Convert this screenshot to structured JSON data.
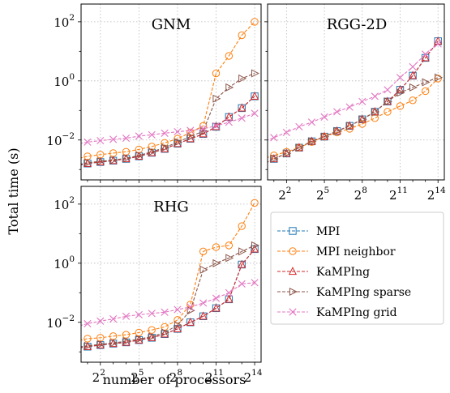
{
  "chart_data": {
    "type": "line",
    "ylabel": "Total time (s)",
    "xlabel": "number of processors",
    "x_log_base": 2,
    "y_log_base": 10,
    "x": [
      1,
      2,
      4,
      8,
      16,
      32,
      64,
      128,
      256,
      512,
      1024,
      2048,
      4096,
      8192,
      16384
    ],
    "xticks": [
      {
        "base": "2",
        "exp": "2",
        "value": 4
      },
      {
        "base": "2",
        "exp": "5",
        "value": 32
      },
      {
        "base": "2",
        "exp": "8",
        "value": 256
      },
      {
        "base": "2",
        "exp": "11",
        "value": 2048
      },
      {
        "base": "2",
        "exp": "14",
        "value": 16384
      }
    ],
    "yticks": [
      {
        "base": "10",
        "exp": "−2",
        "value": 0.01
      },
      {
        "base": "10",
        "exp": "0",
        "value": 1
      },
      {
        "base": "10",
        "exp": "2",
        "value": 100
      }
    ],
    "legend_position": "right of bottom-left panel",
    "series_styles": [
      {
        "name": "MPI",
        "color": "#1f77b4",
        "marker": "square"
      },
      {
        "name": "MPI neighbor",
        "color": "#ff7f0e",
        "marker": "circle"
      },
      {
        "name": "KaMPIng",
        "color": "#d62728",
        "marker": "triangle-up"
      },
      {
        "name": "KaMPIng sparse",
        "color": "#8c564b",
        "marker": "triangle-right"
      },
      {
        "name": "KaMPIng grid",
        "color": "#e377c2",
        "marker": "x"
      }
    ],
    "panels": [
      {
        "title": "GNM",
        "series": [
          {
            "name": "MPI",
            "values": [
              0.0013,
              0.0016,
              0.0018,
              0.002,
              0.0023,
              0.0028,
              0.0037,
              0.005,
              0.0075,
              0.011,
              0.016,
              0.028,
              0.06,
              0.12,
              0.3
            ]
          },
          {
            "name": "MPI neighbor",
            "values": [
              0.0022,
              0.0028,
              0.0032,
              0.0036,
              0.004,
              0.0048,
              0.006,
              0.008,
              0.011,
              0.018,
              0.03,
              1.8,
              7,
              35,
              100
            ]
          },
          {
            "name": "KaMPIng",
            "values": [
              0.0013,
              0.0016,
              0.0018,
              0.002,
              0.0023,
              0.0028,
              0.0037,
              0.005,
              0.0075,
              0.011,
              0.016,
              0.028,
              0.06,
              0.12,
              0.3
            ]
          },
          {
            "name": "KaMPIng sparse",
            "values": [
              0.0014,
              0.0017,
              0.0019,
              0.0021,
              0.0024,
              0.003,
              0.004,
              0.0055,
              0.0085,
              0.013,
              0.02,
              0.25,
              0.6,
              1.2,
              1.8
            ]
          },
          {
            "name": "KaMPIng grid",
            "values": [
              0.007,
              0.0085,
              0.0095,
              0.0105,
              0.0115,
              0.0135,
              0.015,
              0.017,
              0.019,
              0.021,
              0.024,
              0.03,
              0.04,
              0.055,
              0.08
            ]
          }
        ]
      },
      {
        "title": "RGG-2D",
        "series": [
          {
            "name": "MPI",
            "values": [
              0.0014,
              0.0023,
              0.0035,
              0.0055,
              0.009,
              0.013,
              0.02,
              0.03,
              0.05,
              0.09,
              0.2,
              0.5,
              1.5,
              6,
              22
            ]
          },
          {
            "name": "MPI neighbor",
            "values": [
              0.0022,
              0.003,
              0.004,
              0.0055,
              0.0085,
              0.013,
              0.018,
              0.024,
              0.035,
              0.055,
              0.09,
              0.14,
              0.22,
              0.45,
              1.2
            ]
          },
          {
            "name": "KaMPIng",
            "values": [
              0.0014,
              0.0023,
              0.0035,
              0.0055,
              0.009,
              0.013,
              0.02,
              0.03,
              0.05,
              0.09,
              0.2,
              0.5,
              1.5,
              6,
              22
            ]
          },
          {
            "name": "KaMPIng sparse",
            "values": [
              0.0014,
              0.0023,
              0.0035,
              0.0055,
              0.009,
              0.013,
              0.02,
              0.03,
              0.05,
              0.09,
              0.2,
              0.4,
              0.6,
              0.9,
              1.3
            ]
          },
          {
            "name": "KaMPIng grid",
            "values": [
              0.008,
              0.012,
              0.018,
              0.028,
              0.04,
              0.06,
              0.09,
              0.13,
              0.2,
              0.3,
              0.5,
              1.3,
              3,
              8,
              18
            ]
          }
        ]
      },
      {
        "title": "RHG",
        "series": [
          {
            "name": "MPI",
            "values": [
              0.0013,
              0.0015,
              0.0017,
              0.0019,
              0.0021,
              0.0025,
              0.003,
              0.004,
              0.006,
              0.01,
              0.016,
              0.03,
              0.06,
              0.9,
              3
            ]
          },
          {
            "name": "MPI neighbor",
            "values": [
              0.0022,
              0.0028,
              0.003,
              0.0034,
              0.0038,
              0.0045,
              0.0055,
              0.007,
              0.012,
              0.04,
              2.5,
              3.5,
              4,
              18,
              110
            ]
          },
          {
            "name": "KaMPIng",
            "values": [
              0.0013,
              0.0015,
              0.0017,
              0.0019,
              0.0021,
              0.0025,
              0.003,
              0.004,
              0.006,
              0.01,
              0.016,
              0.03,
              0.06,
              0.9,
              3
            ]
          },
          {
            "name": "KaMPIng sparse",
            "values": [
              0.0014,
              0.0016,
              0.0018,
              0.002,
              0.0023,
              0.0027,
              0.0033,
              0.0045,
              0.008,
              0.025,
              0.6,
              1,
              1.5,
              2.5,
              4
            ]
          },
          {
            "name": "KaMPIng grid",
            "values": [
              0.007,
              0.009,
              0.011,
              0.013,
              0.016,
              0.018,
              0.02,
              0.022,
              0.027,
              0.033,
              0.045,
              0.065,
              0.1,
              0.2,
              0.22
            ]
          }
        ]
      }
    ]
  }
}
